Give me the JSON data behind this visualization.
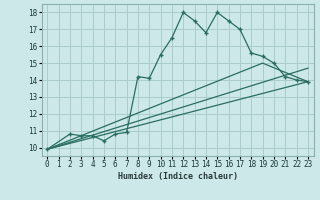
{
  "xlabel": "Humidex (Indice chaleur)",
  "ylabel": "",
  "background_color": "#cce8e8",
  "grid_color": "#aacccc",
  "line_color": "#2a6e60",
  "xlim": [
    -0.5,
    23.5
  ],
  "ylim": [
    9.5,
    18.5
  ],
  "xticks": [
    0,
    1,
    2,
    3,
    4,
    5,
    6,
    7,
    8,
    9,
    10,
    11,
    12,
    13,
    14,
    15,
    16,
    17,
    18,
    19,
    20,
    21,
    22,
    23
  ],
  "yticks": [
    10,
    11,
    12,
    13,
    14,
    15,
    16,
    17,
    18
  ],
  "series": [
    {
      "x": [
        0,
        2,
        3,
        4,
        5,
        6,
        7,
        8,
        9,
        10,
        11,
        12,
        13,
        14,
        15,
        16,
        17,
        18,
        19,
        20,
        21,
        22,
        23
      ],
      "y": [
        9.9,
        10.8,
        10.7,
        10.7,
        10.4,
        10.8,
        10.9,
        14.2,
        14.1,
        15.5,
        16.5,
        18.0,
        17.5,
        16.8,
        18.0,
        17.5,
        17.0,
        15.6,
        15.4,
        15.0,
        14.2,
        14.0,
        13.9
      ]
    },
    {
      "x": [
        0,
        23
      ],
      "y": [
        9.9,
        13.9
      ]
    },
    {
      "x": [
        0,
        23
      ],
      "y": [
        9.9,
        14.7
      ]
    },
    {
      "x": [
        0,
        19,
        23
      ],
      "y": [
        9.9,
        15.0,
        13.9
      ]
    }
  ]
}
